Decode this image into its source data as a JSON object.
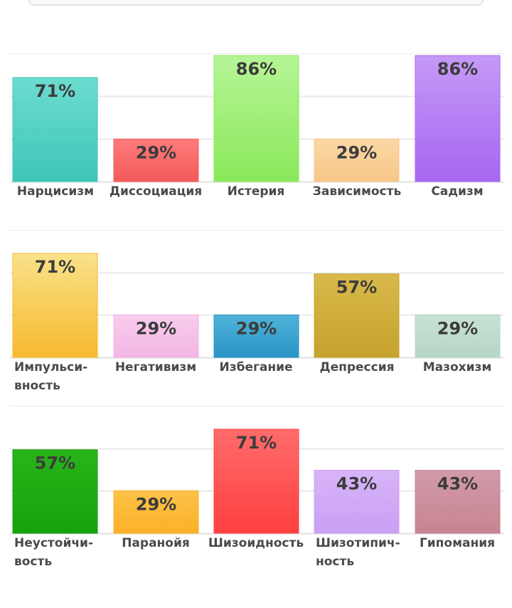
{
  "chart_data": [
    {
      "type": "bar",
      "categories": [
        "Нарцисизм",
        "Диссоциация",
        "Истерия",
        "Зависимость",
        "Садизм"
      ],
      "category_lines": [
        [
          "Нарцисизм"
        ],
        [
          "Диссоциация"
        ],
        [
          "Истерия"
        ],
        [
          "Зависимость"
        ],
        [
          "Садизм"
        ]
      ],
      "values": [
        71,
        29,
        86,
        29,
        86
      ],
      "value_labels": [
        "71%",
        "29%",
        "86%",
        "29%",
        "86%"
      ],
      "colors": [
        [
          "#6bdccf",
          "#3fc6b8"
        ],
        [
          "#ff7b7b",
          "#f35a5a"
        ],
        [
          "#b6f597",
          "#8ae85a"
        ],
        [
          "#fbd8a6",
          "#f7c688"
        ],
        [
          "#c59af7",
          "#a766f0"
        ]
      ],
      "ylim": [
        0,
        100
      ],
      "grid": true
    },
    {
      "type": "bar",
      "categories": [
        "Импульсивность",
        "Негативизм",
        "Избегание",
        "Депрессия",
        "Мазохизм"
      ],
      "category_lines": [
        [
          "Импульси-",
          "вность"
        ],
        [
          "Негативизм"
        ],
        [
          "Избегание"
        ],
        [
          "Депрессия"
        ],
        [
          "Мазохизм"
        ]
      ],
      "values": [
        71,
        29,
        29,
        57,
        29
      ],
      "value_labels": [
        "71%",
        "29%",
        "29%",
        "57%",
        "29%"
      ],
      "colors": [
        [
          "#f8e289",
          "#f7b930"
        ],
        [
          "#f8cdee",
          "#f3b6e4"
        ],
        [
          "#4fb3d9",
          "#2b94c6"
        ],
        [
          "#d8b94a",
          "#c6a22e"
        ],
        [
          "#c8e2d4",
          "#b5d6c5"
        ]
      ],
      "ylim": [
        0,
        100
      ],
      "grid": true
    },
    {
      "type": "bar",
      "categories": [
        "Неустойчивость",
        "Паранойя",
        "Шизоидность",
        "Шизотипичность",
        "Гипомания"
      ],
      "category_lines": [
        [
          "Неустойчи-",
          "вость"
        ],
        [
          "Паранойя"
        ],
        [
          "Шизоидность"
        ],
        [
          "Шизотипич-",
          "ность"
        ],
        [
          "Гипомания"
        ]
      ],
      "values": [
        57,
        29,
        71,
        43,
        43
      ],
      "value_labels": [
        "57%",
        "29%",
        "71%",
        "43%",
        "43%"
      ],
      "colors": [
        [
          "#27b51a",
          "#17a20c"
        ],
        [
          "#fcc24a",
          "#fbb126"
        ],
        [
          "#ff6b6b",
          "#ff4040"
        ],
        [
          "#d8b4f8",
          "#c9a0f4"
        ],
        [
          "#d29aa8",
          "#c78492"
        ]
      ],
      "ylim": [
        0,
        100
      ],
      "grid": true
    }
  ]
}
